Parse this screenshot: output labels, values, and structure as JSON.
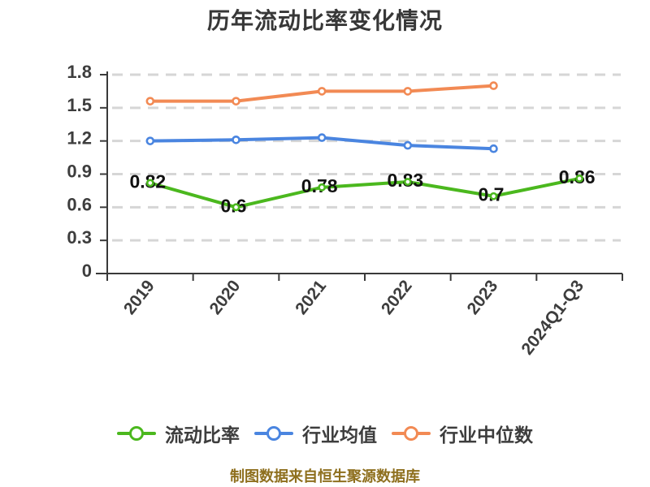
{
  "title": "历年流动比率变化情况",
  "source_note": "制图数据来自恒生聚源数据库",
  "colors": {
    "background": "#ffffff",
    "title_text": "#373737",
    "axis": "#3a3a3a",
    "tick_label": "#3d3d3d",
    "grid": "#d6d6d6",
    "data_label": "#111111",
    "legend_text": "#3d3d3d",
    "source_note_text": "#8e6f1e",
    "marker_fill": "#ffffff"
  },
  "chart_data": {
    "type": "line",
    "title": "历年流动比率变化情况",
    "categories": [
      "2019",
      "2020",
      "2021",
      "2022",
      "2023",
      "2024Q1-Q3"
    ],
    "series": [
      {
        "key": "current-ratio",
        "name": "流动比率",
        "color": "#4bb81e",
        "values": [
          0.82,
          0.6,
          0.78,
          0.83,
          0.7,
          0.86
        ],
        "show_labels": true
      },
      {
        "key": "industry-average",
        "name": "行业均值",
        "color": "#4a85e0",
        "values": [
          1.2,
          1.21,
          1.23,
          1.16,
          1.13
        ],
        "show_labels": false
      },
      {
        "key": "industry-median",
        "name": "行业中位数",
        "color": "#f28a54",
        "values": [
          1.56,
          1.56,
          1.65,
          1.65,
          1.7
        ],
        "show_labels": false
      }
    ],
    "xlabel": "",
    "ylabel": "",
    "ylim": [
      0,
      1.8
    ],
    "yticks": [
      0,
      0.3,
      0.6,
      0.9,
      1.2,
      1.5,
      1.8
    ],
    "grid": "horizontal-dashed",
    "x_label_rotation_deg": -52,
    "legend_position": "bottom"
  }
}
